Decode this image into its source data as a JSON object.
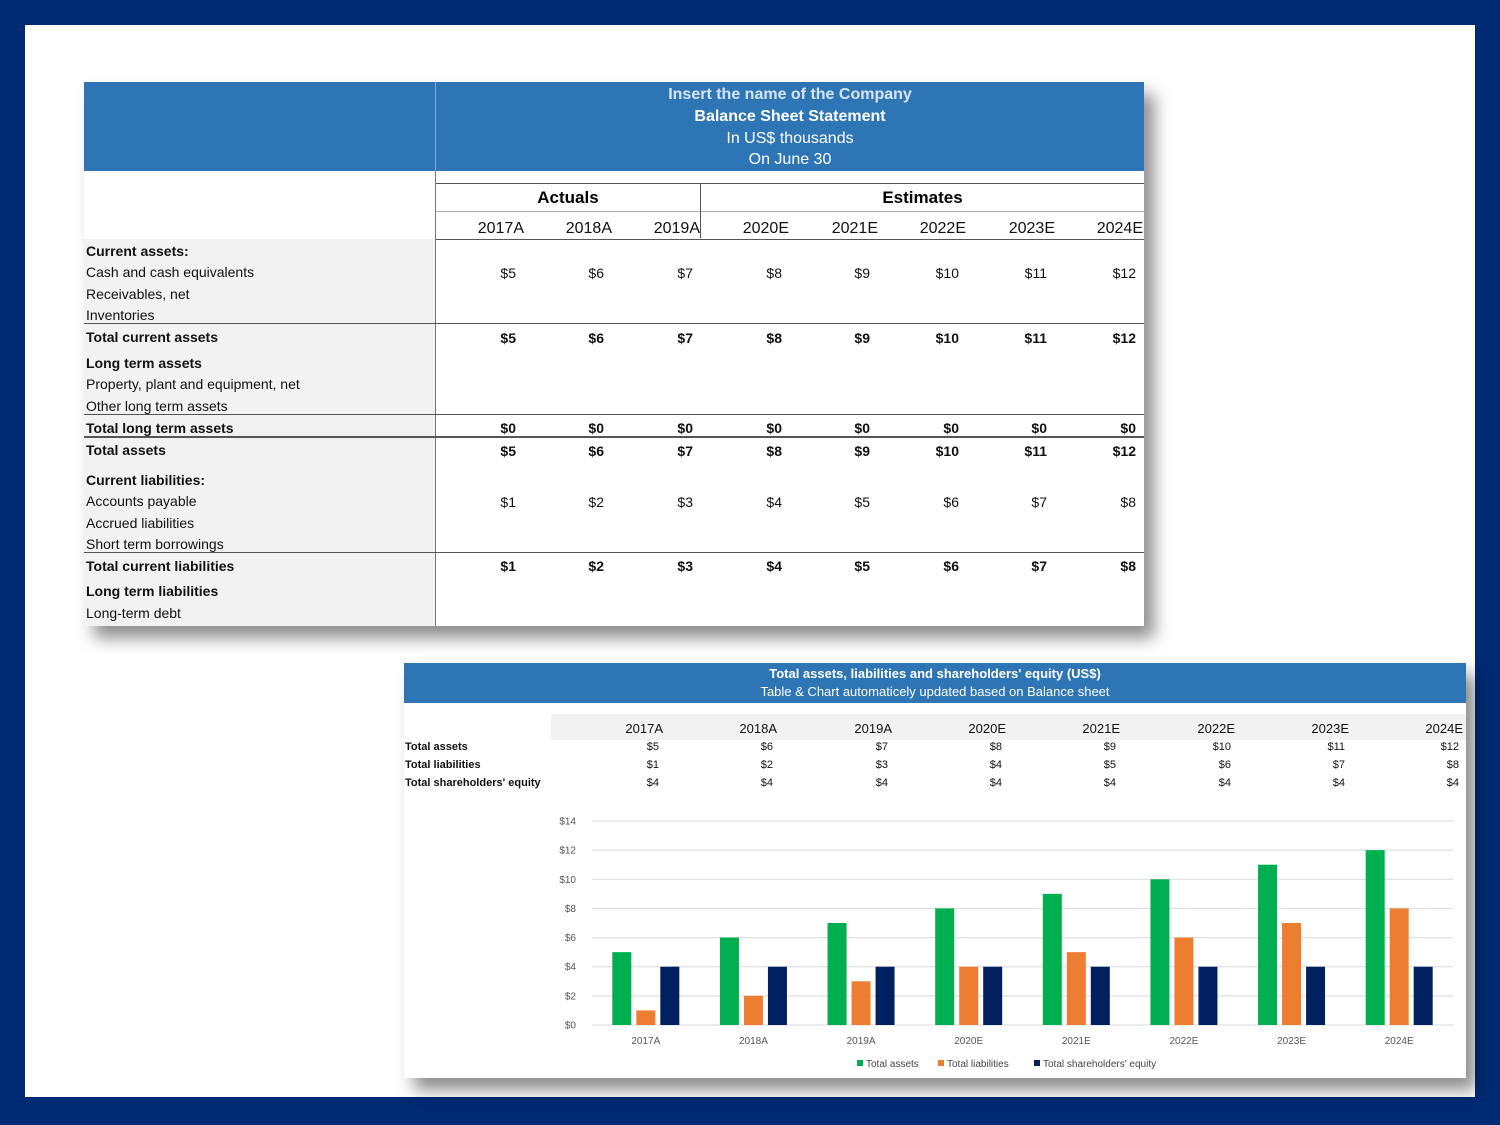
{
  "sheet": {
    "company": "Insert the name of the Company",
    "title": "Balance Sheet Statement",
    "units": "In US$ thousands",
    "date": "On June 30",
    "group_actuals": "Actuals",
    "group_estimates": "Estimates",
    "years": [
      "2017A",
      "2018A",
      "2019A",
      "2020E",
      "2021E",
      "2022E",
      "2023E",
      "2024E"
    ],
    "labels": {
      "current_assets": "Current assets:",
      "cash": "Cash and cash equivalents",
      "receivables": "Receivables, net",
      "inventories": "Inventories",
      "total_current_assets": "Total current assets",
      "long_term_assets": "Long term assets",
      "ppe": "Property, plant and equipment, net",
      "other_lta": "Other long term assets",
      "total_long_term_assets": "Total long term assets",
      "total_assets": "Total assets",
      "current_liabilities": "Current liabilities:",
      "accounts_payable": "Accounts payable",
      "accrued_liabilities": "Accrued liabilities",
      "short_term_borrowings": "Short term borrowings",
      "total_current_liabilities": "Total current liabilities",
      "long_term_liabilities": "Long term liabilities",
      "long_term_debt": "Long-term debt"
    },
    "values": {
      "cash": [
        "$5",
        "$6",
        "$7",
        "$8",
        "$9",
        "$10",
        "$11",
        "$12"
      ],
      "total_current_assets": [
        "$5",
        "$6",
        "$7",
        "$8",
        "$9",
        "$10",
        "$11",
        "$12"
      ],
      "total_long_term_assets": [
        "$0",
        "$0",
        "$0",
        "$0",
        "$0",
        "$0",
        "$0",
        "$0"
      ],
      "total_assets": [
        "$5",
        "$6",
        "$7",
        "$8",
        "$9",
        "$10",
        "$11",
        "$12"
      ],
      "accounts_payable": [
        "$1",
        "$2",
        "$3",
        "$4",
        "$5",
        "$6",
        "$7",
        "$8"
      ],
      "total_current_liabilities": [
        "$1",
        "$2",
        "$3",
        "$4",
        "$5",
        "$6",
        "$7",
        "$8"
      ]
    }
  },
  "panel": {
    "title": "Total assets, liabilities and shareholders' equity (US$)",
    "subtitle": "Table & Chart automaticely updated based on Balance sheet",
    "years": [
      "2017A",
      "2018A",
      "2019A",
      "2020E",
      "2021E",
      "2022E",
      "2023E",
      "2024E"
    ],
    "rows": [
      {
        "label": "Total assets",
        "values": [
          "$5",
          "$6",
          "$7",
          "$8",
          "$9",
          "$10",
          "$11",
          "$12"
        ]
      },
      {
        "label": "Total liabilities",
        "values": [
          "$1",
          "$2",
          "$3",
          "$4",
          "$5",
          "$6",
          "$7",
          "$8"
        ]
      },
      {
        "label": "Total shareholders' equity",
        "values": [
          "$4",
          "$4",
          "$4",
          "$4",
          "$4",
          "$4",
          "$4",
          "$4"
        ]
      }
    ]
  },
  "chart_data": {
    "type": "bar",
    "categories": [
      "2017A",
      "2018A",
      "2019A",
      "2020E",
      "2021E",
      "2022E",
      "2023E",
      "2024E"
    ],
    "series": [
      {
        "name": "Total assets",
        "values": [
          5,
          6,
          7,
          8,
          9,
          10,
          11,
          12
        ],
        "color": "#00b050"
      },
      {
        "name": "Total liabilities",
        "values": [
          1,
          2,
          3,
          4,
          5,
          6,
          7,
          8
        ],
        "color": "#ed7d31"
      },
      {
        "name": "Total shareholders' equity",
        "values": [
          4,
          4,
          4,
          4,
          4,
          4,
          4,
          4
        ],
        "color": "#002060"
      }
    ],
    "yticks": [
      "$0",
      "$2",
      "$4",
      "$6",
      "$8",
      "$10",
      "$12",
      "$14"
    ],
    "ylim": [
      0,
      14
    ],
    "grid": true,
    "legend": "bottom"
  },
  "colors": {
    "background": "#002a74",
    "header_blue": "#2e75b6",
    "label_grey": "#f2f2f2"
  }
}
